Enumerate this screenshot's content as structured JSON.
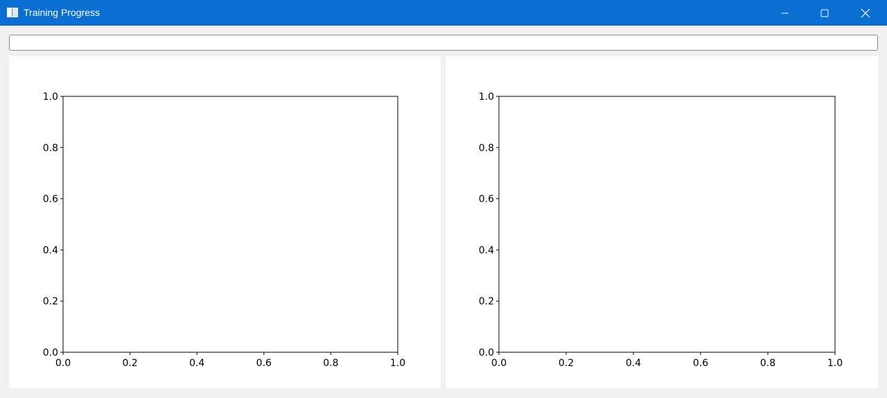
{
  "window": {
    "title": "Training Progress",
    "controls": [
      "minimize-icon",
      "maximize-icon",
      "close-icon"
    ]
  },
  "progress": {
    "value": 0
  },
  "chart_data": [
    {
      "type": "line",
      "title": "",
      "xlabel": "",
      "ylabel": "",
      "xlim": [
        0.0,
        1.0
      ],
      "ylim": [
        0.0,
        1.0
      ],
      "x_ticks": [
        "0.0",
        "0.2",
        "0.4",
        "0.6",
        "0.8",
        "1.0"
      ],
      "y_ticks": [
        "0.0",
        "0.2",
        "0.4",
        "0.6",
        "0.8",
        "1.0"
      ],
      "series": [],
      "grid": false
    },
    {
      "type": "line",
      "title": "",
      "xlabel": "",
      "ylabel": "",
      "xlim": [
        0.0,
        1.0
      ],
      "ylim": [
        0.0,
        1.0
      ],
      "x_ticks": [
        "0.0",
        "0.2",
        "0.4",
        "0.6",
        "0.8",
        "1.0"
      ],
      "y_ticks": [
        "0.0",
        "0.2",
        "0.4",
        "0.6",
        "0.8",
        "1.0"
      ],
      "series": [],
      "grid": false
    }
  ]
}
